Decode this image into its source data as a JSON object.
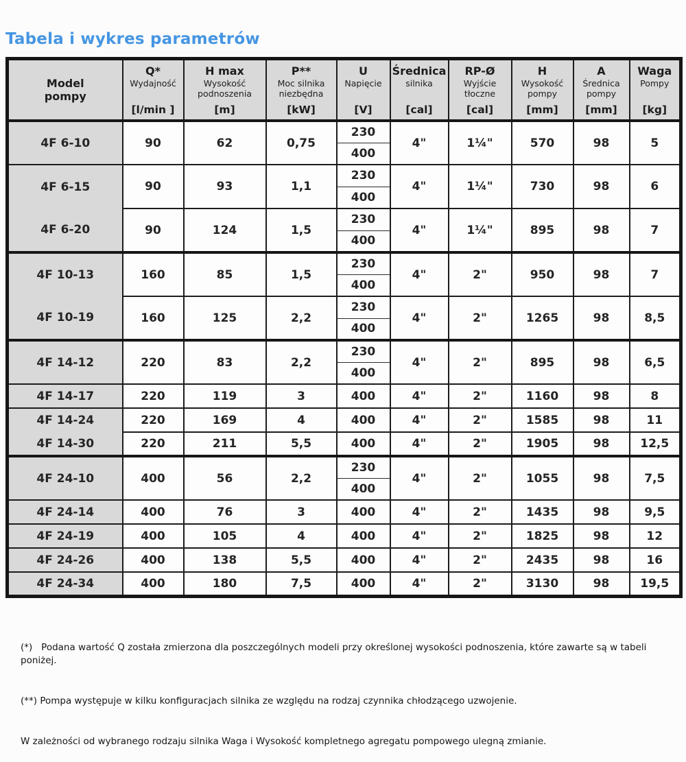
{
  "page": {
    "title": "Tabela i wykres parametrów"
  },
  "colors": {
    "title_blue": "#4696e3",
    "header_bg": "#d9d9d9",
    "cell_bg": "#fdfdfd",
    "border": "#161616"
  },
  "table": {
    "headers": [
      {
        "key": "model",
        "main": "Model\npompy",
        "sub": "",
        "unit": ""
      },
      {
        "key": "q",
        "main": "Q*",
        "sub": "Wydajność",
        "unit": "[l/min ]"
      },
      {
        "key": "hmax",
        "main": "H max",
        "sub": "Wysokość\npodnoszenia",
        "unit": "[m]"
      },
      {
        "key": "p",
        "main": "P**",
        "sub": "Moc silnika\nniezbędna",
        "unit": "[kW]"
      },
      {
        "key": "u",
        "main": "U",
        "sub": "Napięcie",
        "unit": "[V]"
      },
      {
        "key": "motor",
        "main": "Średnica",
        "sub": "silnika",
        "unit": "[cal]"
      },
      {
        "key": "outlet",
        "main": "RP-Ø",
        "sub": "Wyjście\ntłoczne",
        "unit": "[cal]"
      },
      {
        "key": "h",
        "main": "H",
        "sub": "Wysokość\npompy",
        "unit": "[mm]"
      },
      {
        "key": "a",
        "main": "A",
        "sub": "Średnica\npompy",
        "unit": "[mm]"
      },
      {
        "key": "weight",
        "main": "Waga",
        "sub": "Pompy",
        "unit": "[kg]"
      }
    ],
    "groups": [
      {
        "rows": [
          {
            "model": "4F 6-10",
            "q": "90",
            "hmax": "62",
            "p": "0,75",
            "u": [
              "230",
              "400"
            ],
            "motor": "4\"",
            "outlet": "1¼\"",
            "h": "570",
            "a": "98",
            "weight": "5"
          },
          {
            "model": "4F 6-15",
            "q": "90",
            "hmax": "93",
            "p": "1,1",
            "u": [
              "230",
              "400"
            ],
            "motor": "4\"",
            "outlet": "1¼\"",
            "h": "730",
            "a": "98",
            "weight": "6"
          },
          {
            "model": "4F 6-20",
            "q": "90",
            "hmax": "124",
            "p": "1,5",
            "u": [
              "230",
              "400"
            ],
            "motor": "4\"",
            "outlet": "1¼\"",
            "h": "895",
            "a": "98",
            "weight": "7",
            "model_top_divider": false
          }
        ]
      },
      {
        "rows": [
          {
            "model": "4F 10-13",
            "q": "160",
            "hmax": "85",
            "p": "1,5",
            "u": [
              "230",
              "400"
            ],
            "motor": "4\"",
            "outlet": "2\"",
            "h": "950",
            "a": "98",
            "weight": "7"
          },
          {
            "model": "4F 10-19",
            "q": "160",
            "hmax": "125",
            "p": "2,2",
            "u": [
              "230",
              "400"
            ],
            "motor": "4\"",
            "outlet": "2\"",
            "h": "1265",
            "a": "98",
            "weight": "8,5",
            "model_top_divider": false
          }
        ]
      },
      {
        "rows": [
          {
            "model": "4F 14-12",
            "q": "220",
            "hmax": "83",
            "p": "2,2",
            "u": [
              "230",
              "400"
            ],
            "motor": "4\"",
            "outlet": "2\"",
            "h": "895",
            "a": "98",
            "weight": "6,5"
          },
          {
            "model": "4F 14-17",
            "q": "220",
            "hmax": "119",
            "p": "3",
            "u": "400",
            "motor": "4\"",
            "outlet": "2\"",
            "h": "1160",
            "a": "98",
            "weight": "8"
          },
          {
            "model": "4F 14-24",
            "q": "220",
            "hmax": "169",
            "p": "4",
            "u": "400",
            "motor": "4\"",
            "outlet": "2\"",
            "h": "1585",
            "a": "98",
            "weight": "11"
          },
          {
            "model": "4F 14-30",
            "q": "220",
            "hmax": "211",
            "p": "5,5",
            "u": "400",
            "motor": "4\"",
            "outlet": "2\"",
            "h": "1905",
            "a": "98",
            "weight": "12,5",
            "model_top_divider": false
          }
        ]
      },
      {
        "rows": [
          {
            "model": "4F 24-10",
            "q": "400",
            "hmax": "56",
            "p": "2,2",
            "u": [
              "230",
              "400"
            ],
            "motor": "4\"",
            "outlet": "2\"",
            "h": "1055",
            "a": "98",
            "weight": "7,5"
          },
          {
            "model": "4F 24-14",
            "q": "400",
            "hmax": "76",
            "p": "3",
            "u": "400",
            "motor": "4\"",
            "outlet": "2\"",
            "h": "1435",
            "a": "98",
            "weight": "9,5"
          },
          {
            "model": "4F 24-19",
            "q": "400",
            "hmax": "105",
            "p": "4",
            "u": "400",
            "motor": "4\"",
            "outlet": "2\"",
            "h": "1825",
            "a": "98",
            "weight": "12"
          },
          {
            "model": "4F 24-26",
            "q": "400",
            "hmax": "138",
            "p": "5,5",
            "u": "400",
            "motor": "4\"",
            "outlet": "2\"",
            "h": "2435",
            "a": "98",
            "weight": "16"
          },
          {
            "model": "4F 24-34",
            "q": "400",
            "hmax": "180",
            "p": "7,5",
            "u": "400",
            "motor": "4\"",
            "outlet": "2\"",
            "h": "3130",
            "a": "98",
            "weight": "19,5"
          }
        ]
      }
    ]
  },
  "footnotes": [
    "(*)   Podana wartość Q została zmierzona dla poszczególnych modeli przy określonej wysokości podnoszenia, które zawarte są w tabeli poniżej.",
    "(**) Pompa występuje w kilku konfiguracjach silnika ze względu na rodzaj czynnika chłodzącego uzwojenie.",
    "W zależności od wybranego rodzaju silnika Waga i Wysokość kompletnego agregatu pompowego ulegną zmianie."
  ]
}
